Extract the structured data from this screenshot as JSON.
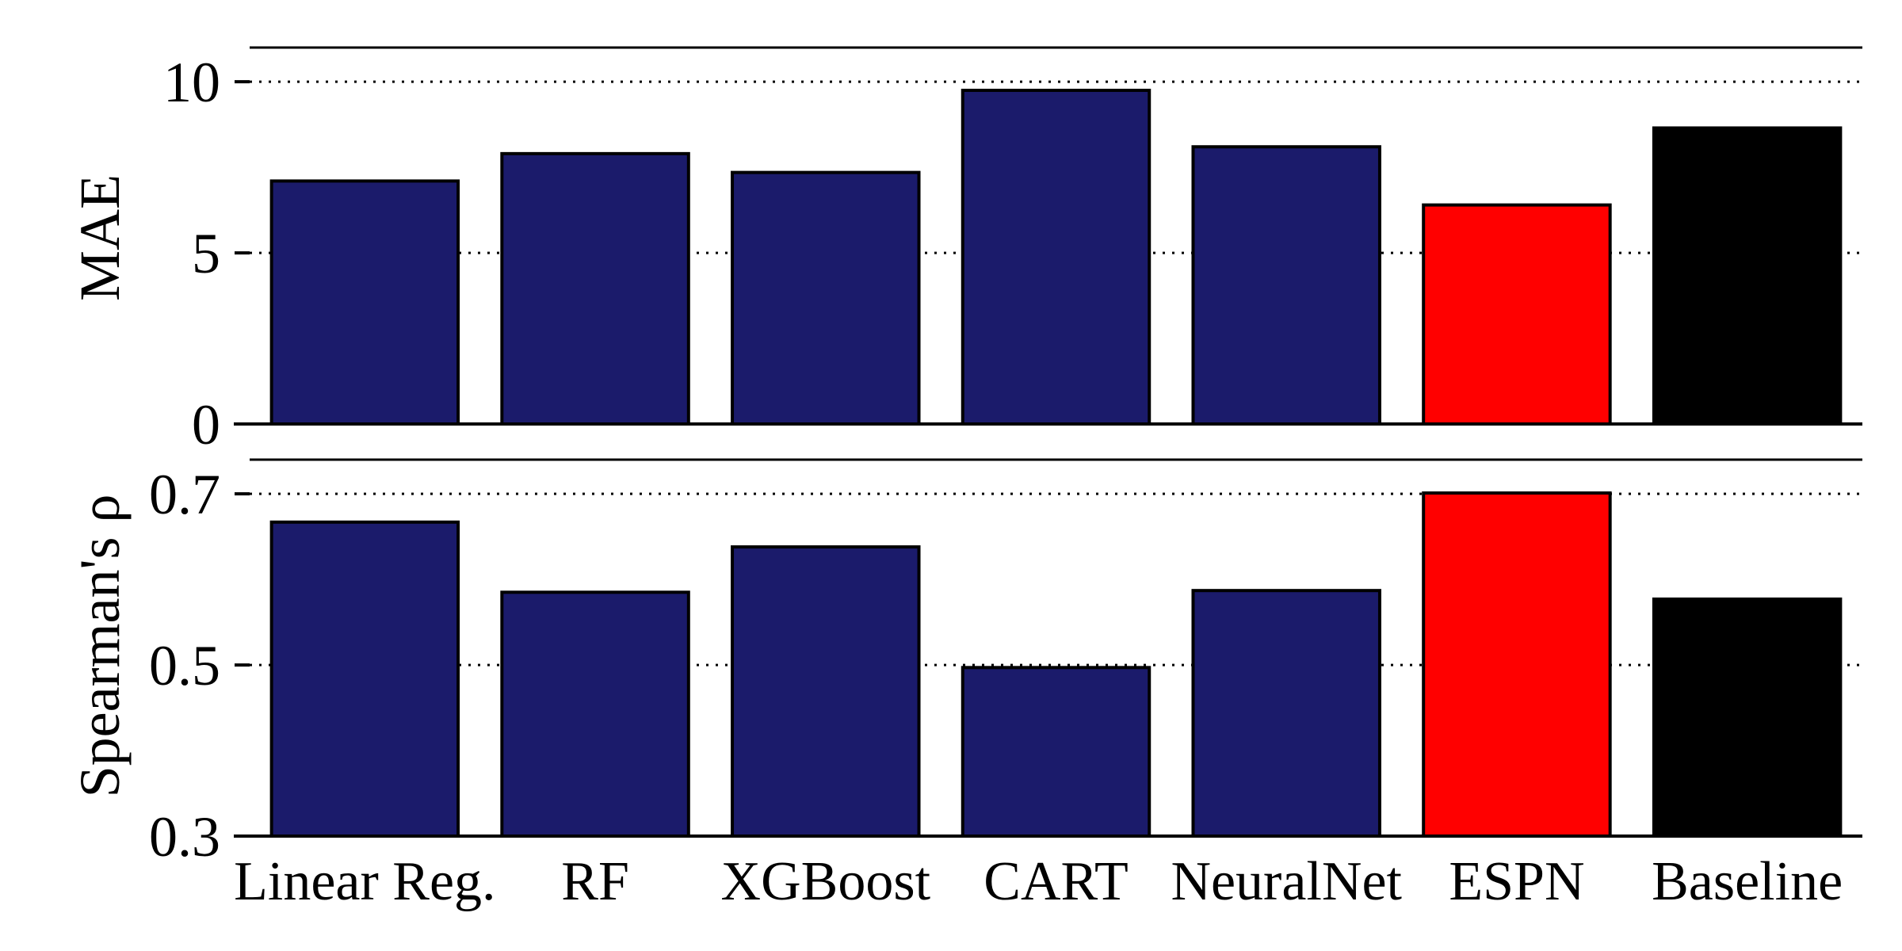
{
  "chart_data": [
    {
      "type": "bar",
      "categories": [
        "Linear Reg.",
        "RF",
        "XGBoost",
        "CART",
        "NeuralNet",
        "ESPN",
        "Baseline"
      ],
      "values": [
        7.1,
        7.9,
        7.35,
        9.75,
        8.1,
        6.4,
        8.65
      ],
      "colors": [
        "#1b1b6b",
        "#1b1b6b",
        "#1b1b6b",
        "#1b1b6b",
        "#1b1b6b",
        "#ff0000",
        "#000000"
      ],
      "ylabel": "MAE",
      "ylim": [
        0,
        11
      ],
      "yticks": [
        "0",
        "5",
        "10"
      ],
      "grid": "dotted horizontal at ticks"
    },
    {
      "type": "bar",
      "categories": [
        "Linear Reg.",
        "RF",
        "XGBoost",
        "CART",
        "NeuralNet",
        "ESPN",
        "Baseline"
      ],
      "values": [
        0.667,
        0.585,
        0.638,
        0.497,
        0.587,
        0.701,
        0.577
      ],
      "colors": [
        "#1b1b6b",
        "#1b1b6b",
        "#1b1b6b",
        "#1b1b6b",
        "#1b1b6b",
        "#ff0000",
        "#000000"
      ],
      "ylabel": "Spearman's ρ",
      "ylim": [
        0.3,
        0.74
      ],
      "yticks": [
        "0.3",
        "0.5",
        "0.7"
      ],
      "grid": "dotted horizontal at ticks"
    }
  ]
}
